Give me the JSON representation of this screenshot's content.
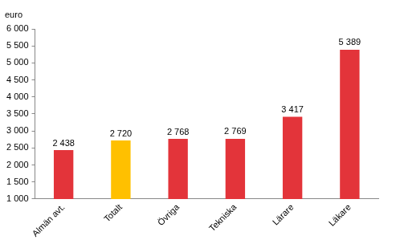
{
  "chart_data": {
    "type": "bar",
    "ylabel": "euro",
    "categories": [
      "Almän avt.",
      "Totalt",
      "Övriga",
      "Tekniska",
      "Lärare",
      "Läkare"
    ],
    "values": [
      2438,
      2720,
      2768,
      2769,
      3417,
      5389
    ],
    "value_labels": [
      "2 438",
      "2 720",
      "2 768",
      "2 769",
      "3 417",
      "5 389"
    ],
    "colors": [
      "#e3343a",
      "#ffc000",
      "#e3343a",
      "#e3343a",
      "#e3343a",
      "#e3343a"
    ],
    "ylim": [
      1000,
      6000
    ],
    "yticks": [
      {
        "value": 1000,
        "label": "1 000"
      },
      {
        "value": 1500,
        "label": "1 500"
      },
      {
        "value": 2000,
        "label": "2 000"
      },
      {
        "value": 2500,
        "label": "2 500"
      },
      {
        "value": 3000,
        "label": "3 000"
      },
      {
        "value": 3500,
        "label": "3 500"
      },
      {
        "value": 4000,
        "label": "4 000"
      },
      {
        "value": 4500,
        "label": "4 500"
      },
      {
        "value": 5000,
        "label": "5 000"
      },
      {
        "value": 5500,
        "label": "5 500"
      },
      {
        "value": 6000,
        "label": "6 000"
      }
    ],
    "grid": false,
    "data_labels": true
  }
}
